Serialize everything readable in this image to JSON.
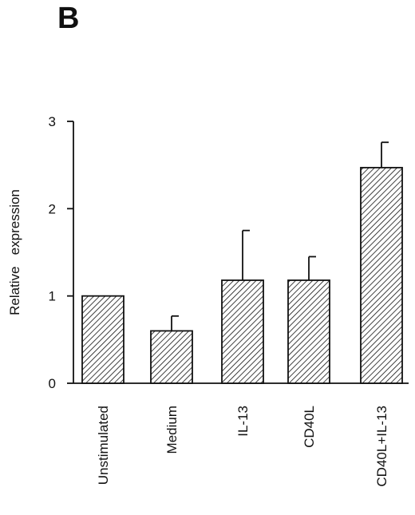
{
  "panel_label": "B",
  "chart_data": {
    "type": "bar",
    "categories": [
      "Unstimulated",
      "Medium",
      "IL-13",
      "CD40L",
      "CD40L+IL-13"
    ],
    "values": [
      1.0,
      0.6,
      1.18,
      1.18,
      2.47
    ],
    "errors": [
      0,
      0.17,
      0.57,
      0.27,
      0.29
    ],
    "ylabel": "Relative   expression",
    "xlabel": "",
    "ylim": [
      0,
      3
    ],
    "yticks": [
      "0",
      "1",
      "2",
      "3"
    ],
    "grid": false,
    "bar_fill": "hatched",
    "colors": {
      "bar_stroke": "#111111",
      "hatch": "#111111",
      "axis": "#111111"
    }
  }
}
